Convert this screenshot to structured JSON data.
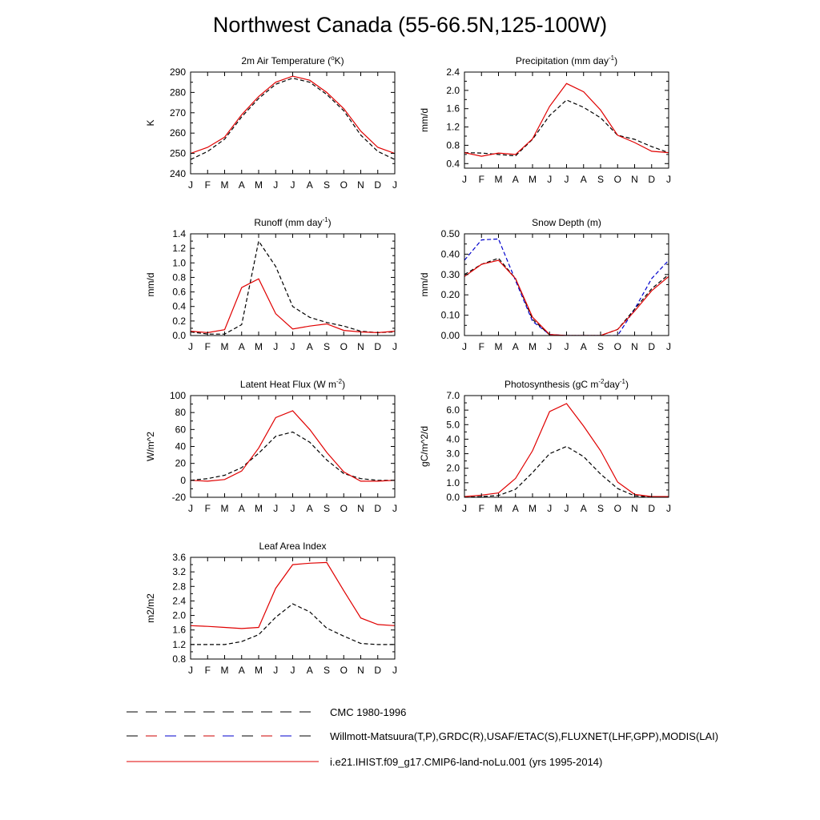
{
  "page": {
    "title": "Northwest Canada (55-66.5N,125-100W)"
  },
  "legend": [
    {
      "label": "CMC 1980-1996",
      "style": "dashed",
      "colors": [
        "#000000"
      ]
    },
    {
      "label": "Willmott-Matsuura(T,P),GRDC(R),USAF/ETAC(S),FLUXNET(LHF,GPP),MODIS(LAI)",
      "style": "dashed",
      "colors": [
        "#000000",
        "#cc0000",
        "#0000cc"
      ]
    },
    {
      "label": "i.e21.IHIST.f09_g17.CMIP6-land-noLu.001 (yrs 1995-2014)",
      "style": "solid",
      "colors": [
        "#e00000"
      ]
    }
  ],
  "chart_data": [
    {
      "type": "line",
      "title": "2m Air Temperature (°K)",
      "title_parts": [
        [
          "2m Air Temperature (",
          ""
        ],
        [
          "o",
          "sup"
        ],
        [
          "K)",
          ""
        ]
      ],
      "ylabel": "K",
      "ylim": [
        240,
        290
      ],
      "yticks": [
        240,
        250,
        260,
        270,
        280,
        290
      ],
      "yticklabels": [
        "240",
        "250",
        "260",
        "270",
        "280",
        "290"
      ],
      "categories": [
        "J",
        "F",
        "M",
        "A",
        "M",
        "J",
        "J",
        "A",
        "S",
        "O",
        "N",
        "D",
        "J"
      ],
      "series": [
        {
          "style": "dashed",
          "color": "#000000",
          "values": [
            247,
            251,
            257,
            268,
            277,
            284,
            287,
            285,
            279,
            271,
            259,
            251,
            247
          ]
        },
        {
          "style": "solid",
          "color": "#e00000",
          "values": [
            250,
            253,
            258,
            269,
            278,
            285,
            288,
            286,
            280,
            272,
            261,
            253,
            250
          ]
        }
      ]
    },
    {
      "type": "line",
      "title": "Precipitation (mm day-1)",
      "title_parts": [
        [
          "Precipitation (mm day",
          ""
        ],
        [
          "-1",
          "sup"
        ],
        [
          ")",
          ""
        ]
      ],
      "ylabel": "mm/d",
      "ylim": [
        0.3,
        2.4
      ],
      "yticks": [
        0.4,
        0.8,
        1.2,
        1.6,
        2.0,
        2.4
      ],
      "yticklabels": [
        "0.4",
        "0.8",
        "1.2",
        "1.6",
        "2.0",
        "2.4"
      ],
      "categories": [
        "J",
        "F",
        "M",
        "A",
        "M",
        "J",
        "J",
        "A",
        "S",
        "O",
        "N",
        "D",
        "J"
      ],
      "series": [
        {
          "style": "dashed",
          "color": "#000000",
          "values": [
            0.64,
            0.63,
            0.6,
            0.57,
            0.93,
            1.45,
            1.79,
            1.63,
            1.4,
            1.02,
            0.93,
            0.77,
            0.64
          ]
        },
        {
          "style": "solid",
          "color": "#e00000",
          "values": [
            0.64,
            0.56,
            0.63,
            0.6,
            0.94,
            1.65,
            2.15,
            1.97,
            1.57,
            1.02,
            0.86,
            0.67,
            0.64
          ]
        }
      ]
    },
    {
      "type": "line",
      "title": "Runoff (mm day-1)",
      "title_parts": [
        [
          "Runoff (mm day",
          ""
        ],
        [
          "-1",
          "sup"
        ],
        [
          ")",
          ""
        ]
      ],
      "ylabel": "mm/d",
      "ylim": [
        0,
        1.4
      ],
      "yticks": [
        0,
        0.2,
        0.4,
        0.6,
        0.8,
        1.0,
        1.2,
        1.4
      ],
      "yticklabels": [
        "0.0",
        "0.2",
        "0.4",
        "0.6",
        "0.8",
        "1.0",
        "1.2",
        "1.4"
      ],
      "categories": [
        "J",
        "F",
        "M",
        "A",
        "M",
        "J",
        "J",
        "A",
        "S",
        "O",
        "N",
        "D",
        "J"
      ],
      "series": [
        {
          "style": "dashed",
          "color": "#000000",
          "values": [
            0.05,
            0.02,
            0.02,
            0.15,
            1.3,
            0.95,
            0.4,
            0.25,
            0.18,
            0.13,
            0.06,
            0.04,
            0.05
          ]
        },
        {
          "style": "solid",
          "color": "#e00000",
          "values": [
            0.06,
            0.04,
            0.08,
            0.66,
            0.78,
            0.3,
            0.09,
            0.13,
            0.16,
            0.07,
            0.05,
            0.04,
            0.06
          ]
        }
      ]
    },
    {
      "type": "line",
      "title": "Snow Depth (m)",
      "title_parts": [
        [
          "Snow Depth (m)",
          ""
        ]
      ],
      "ylabel": "mm/d",
      "ylim": [
        0,
        0.5
      ],
      "yticks": [
        0,
        0.1,
        0.2,
        0.3,
        0.4,
        0.5
      ],
      "yticklabels": [
        "0.00",
        "0.10",
        "0.20",
        "0.30",
        "0.40",
        "0.50"
      ],
      "categories": [
        "J",
        "F",
        "M",
        "A",
        "M",
        "J",
        "J",
        "A",
        "S",
        "O",
        "N",
        "D",
        "J"
      ],
      "series": [
        {
          "style": "dashed",
          "color": "#0000cc",
          "values": [
            0.37,
            0.47,
            0.475,
            0.27,
            0.07,
            0.005,
            0.0,
            0.0,
            0.0,
            0.0,
            0.13,
            0.28,
            0.37
          ]
        },
        {
          "style": "dashed",
          "color": "#000000",
          "values": [
            0.3,
            0.35,
            0.38,
            0.28,
            0.08,
            0.003,
            0.0,
            0.0,
            0.0,
            0.03,
            0.13,
            0.23,
            0.3
          ]
        },
        {
          "style": "solid",
          "color": "#e00000",
          "values": [
            0.29,
            0.35,
            0.37,
            0.28,
            0.09,
            0.005,
            0.0,
            0.0,
            0.0,
            0.03,
            0.12,
            0.22,
            0.29
          ]
        }
      ]
    },
    {
      "type": "line",
      "title": "Latent Heat Flux (W m-2)",
      "title_parts": [
        [
          "Latent Heat Flux (W m",
          ""
        ],
        [
          "-2",
          "sup"
        ],
        [
          ")",
          ""
        ]
      ],
      "ylabel": "W/m^2",
      "ylim": [
        -20,
        100
      ],
      "yticks": [
        -20,
        0,
        20,
        40,
        60,
        80,
        100
      ],
      "yticklabels": [
        "-20",
        "0",
        "20",
        "40",
        "60",
        "80",
        "100"
      ],
      "categories": [
        "J",
        "F",
        "M",
        "A",
        "M",
        "J",
        "J",
        "A",
        "S",
        "O",
        "N",
        "D",
        "J"
      ],
      "series": [
        {
          "style": "dashed",
          "color": "#000000",
          "values": [
            0,
            2,
            6,
            15,
            32,
            52,
            57,
            45,
            24,
            8,
            2,
            0,
            0
          ]
        },
        {
          "style": "solid",
          "color": "#e00000",
          "values": [
            0,
            -1,
            1,
            11,
            38,
            74,
            82,
            60,
            33,
            10,
            -1,
            -1,
            0
          ]
        }
      ]
    },
    {
      "type": "line",
      "title": "Photosynthesis (gC m-2day-1)",
      "title_parts": [
        [
          "Photosynthesis (gC m",
          ""
        ],
        [
          "-2",
          "sup"
        ],
        [
          "day",
          ""
        ],
        [
          "-1",
          "sup"
        ],
        [
          ")",
          ""
        ]
      ],
      "ylabel": "gC/m^2/d",
      "ylim": [
        0,
        7
      ],
      "yticks": [
        0,
        1,
        2,
        3,
        4,
        5,
        6,
        7
      ],
      "yticklabels": [
        "0.0",
        "1.0",
        "2.0",
        "3.0",
        "4.0",
        "5.0",
        "6.0",
        "7.0"
      ],
      "categories": [
        "J",
        "F",
        "M",
        "A",
        "M",
        "J",
        "J",
        "A",
        "S",
        "O",
        "N",
        "D",
        "J"
      ],
      "series": [
        {
          "style": "dashed",
          "color": "#000000",
          "values": [
            0.0,
            0.05,
            0.12,
            0.55,
            1.7,
            3.0,
            3.5,
            2.8,
            1.6,
            0.6,
            0.1,
            0.02,
            0.0
          ]
        },
        {
          "style": "solid",
          "color": "#e00000",
          "values": [
            0.05,
            0.15,
            0.3,
            1.3,
            3.2,
            5.9,
            6.45,
            4.9,
            3.2,
            1.05,
            0.2,
            0.05,
            0.05
          ]
        }
      ]
    },
    {
      "type": "line",
      "title": "Leaf Area Index",
      "title_parts": [
        [
          "Leaf Area Index",
          ""
        ]
      ],
      "ylabel": "m2/m2",
      "ylim": [
        0.8,
        3.6
      ],
      "yticks": [
        0.8,
        1.2,
        1.6,
        2.0,
        2.4,
        2.8,
        3.2,
        3.6
      ],
      "yticklabels": [
        "0.8",
        "1.2",
        "1.6",
        "2.0",
        "2.4",
        "2.8",
        "3.2",
        "3.6"
      ],
      "categories": [
        "J",
        "F",
        "M",
        "A",
        "M",
        "J",
        "J",
        "A",
        "S",
        "O",
        "N",
        "D",
        "J"
      ],
      "series": [
        {
          "style": "dashed",
          "color": "#000000",
          "values": [
            1.2,
            1.2,
            1.2,
            1.28,
            1.47,
            1.95,
            2.32,
            2.1,
            1.65,
            1.43,
            1.23,
            1.2,
            1.2
          ]
        },
        {
          "style": "solid",
          "color": "#e00000",
          "values": [
            1.72,
            1.7,
            1.67,
            1.64,
            1.67,
            2.75,
            3.4,
            3.44,
            3.46,
            2.68,
            1.93,
            1.75,
            1.72
          ]
        }
      ]
    }
  ]
}
